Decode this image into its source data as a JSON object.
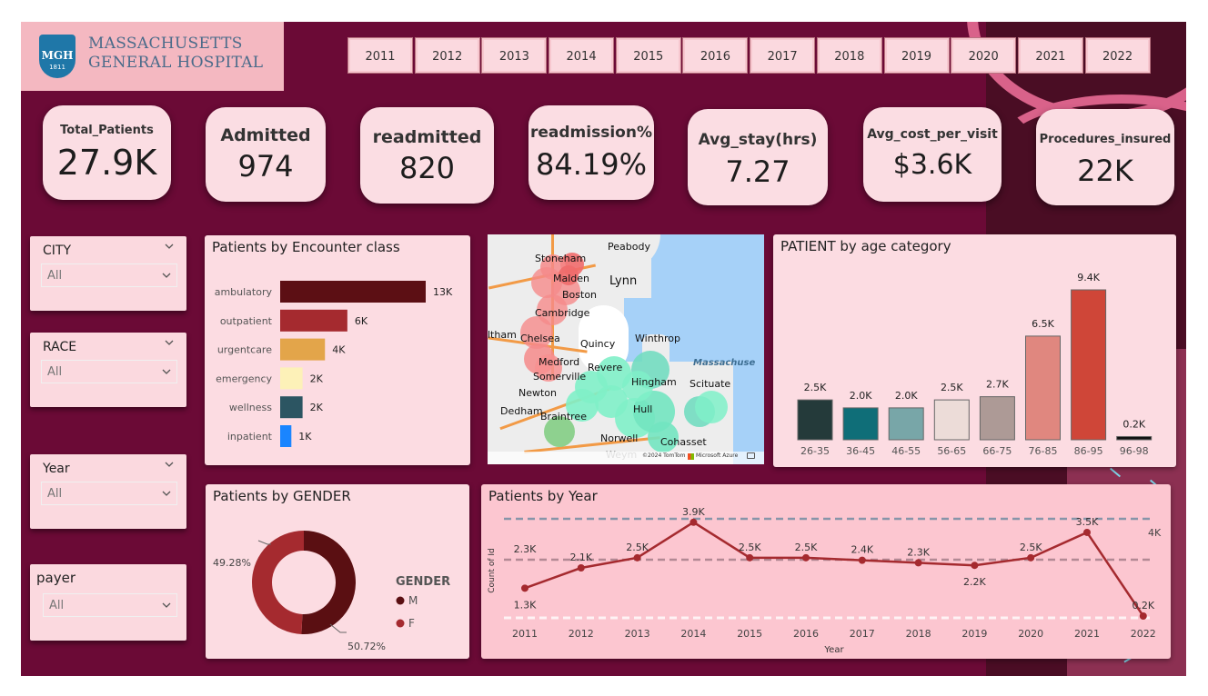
{
  "logo": {
    "abbr": "MGH",
    "year": "1811",
    "line1": "MASSACHUSETTS",
    "line2": "GENERAL HOSPITAL"
  },
  "years": [
    "2011",
    "2012",
    "2013",
    "2014",
    "2015",
    "2016",
    "2017",
    "2018",
    "2019",
    "2020",
    "2021",
    "2022"
  ],
  "kpis": [
    {
      "label": "Total_Patients",
      "value": "27.9K"
    },
    {
      "label": "Admitted",
      "value": "974"
    },
    {
      "label": "readmitted",
      "value": "820"
    },
    {
      "label": "readmission%",
      "value": "84.19%"
    },
    {
      "label": "Avg_stay(hrs)",
      "value": "7.27"
    },
    {
      "label": "Avg_cost_per_visit",
      "value": "$3.6K"
    },
    {
      "label": "Procedures_insured",
      "value": "22K"
    }
  ],
  "slicers": [
    {
      "title": "CITY",
      "value": "All"
    },
    {
      "title": "RACE",
      "value": "All"
    },
    {
      "title": "Year",
      "value": "All"
    },
    {
      "title": "payer",
      "value": "All"
    }
  ],
  "encounter": {
    "title": "Patients by Encounter class",
    "chart_data": {
      "type": "bar",
      "orientation": "horizontal",
      "categories": [
        "ambulatory",
        "outpatient",
        "urgentcare",
        "emergency",
        "wellness",
        "inpatient"
      ],
      "values": [
        13,
        6,
        4,
        2,
        2,
        1
      ],
      "labels": [
        "13K",
        "6K",
        "4K",
        "2K",
        "2K",
        "1K"
      ],
      "colors": [
        "#5c0f14",
        "#a52a2f",
        "#e3a54a",
        "#fdf1b8",
        "#2c5562",
        "#1a85ff"
      ]
    }
  },
  "map": {
    "labels": [
      "Peabody",
      "Stoneham",
      "Malden",
      "Lynn",
      "Boston",
      "Cambridge",
      "ltham",
      "Chelsea",
      "Quincy",
      "Winthrop",
      "Massachuse",
      "Medford",
      "Revere",
      "Somerville",
      "Hingham",
      "Scituate",
      "Newton",
      "Hull",
      "Dedham",
      "Braintree",
      "Norwell",
      "Cohasset",
      "Weym"
    ],
    "attribution_tomtom": "©2024 TomTom",
    "attribution_ms": "Microsoft Azure"
  },
  "age": {
    "title": "PATIENT by age category",
    "chart_data": {
      "type": "bar",
      "categories": [
        "26-35",
        "36-45",
        "46-55",
        "56-65",
        "66-75",
        "76-85",
        "86-95",
        "96-98"
      ],
      "values": [
        2.5,
        2.0,
        2.0,
        2.5,
        2.7,
        6.5,
        9.4,
        0.2
      ],
      "labels": [
        "2.5K",
        "2.0K",
        "2.0K",
        "2.5K",
        "2.7K",
        "6.5K",
        "9.4K",
        "0.2K"
      ],
      "colors": [
        "#243a3a",
        "#0f6e78",
        "#78a6a8",
        "#ecdcd8",
        "#ad9a96",
        "#e0877f",
        "#cf4638",
        "#111111"
      ]
    }
  },
  "gender": {
    "title": "Patients by GENDER",
    "legend_title": "GENDER",
    "chart_data": {
      "type": "pie",
      "categories": [
        "M",
        "F"
      ],
      "values": [
        50.72,
        49.28
      ],
      "labels": [
        "50.72%",
        "49.28%"
      ],
      "colors": [
        "#5a0f12",
        "#a52a2f"
      ]
    }
  },
  "yearly": {
    "title": "Patients by Year",
    "xlabel": "Year",
    "ylabel": "Count of Id",
    "ref_label": "4K",
    "chart_data": {
      "type": "line",
      "x": [
        "2011",
        "2012",
        "2013",
        "2014",
        "2015",
        "2016",
        "2017",
        "2018",
        "2019",
        "2020",
        "2021",
        "2022"
      ],
      "values": [
        1.3,
        2.1,
        2.5,
        3.9,
        2.5,
        2.5,
        2.4,
        2.3,
        2.2,
        2.5,
        3.5,
        0.2
      ],
      "labels": [
        "1.3K",
        "2.1K",
        "2.5K",
        "3.9K",
        "2.5K",
        "2.5K",
        "2.4K",
        "2.3K",
        "2.2K",
        "2.5K",
        "3.5K",
        "0.2K"
      ],
      "extra_label": "2.3K",
      "ylim": [
        0,
        4
      ],
      "color": "#a52a2f"
    }
  }
}
